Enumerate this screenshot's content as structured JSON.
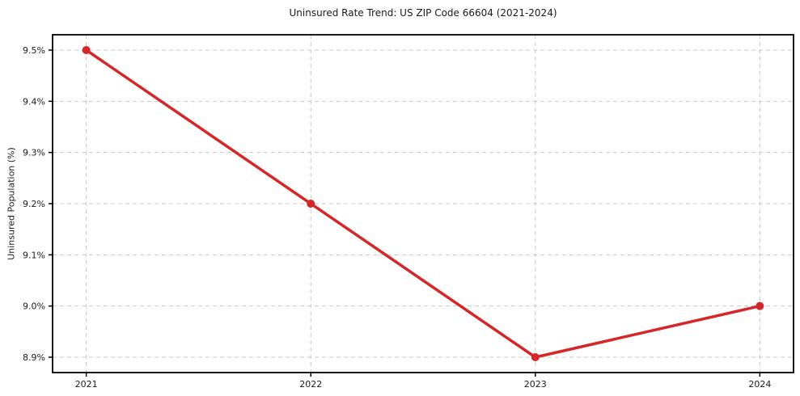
{
  "page": {
    "background": "#ffffff"
  },
  "chart_data": {
    "type": "line",
    "title": "Uninsured Rate Trend: US ZIP Code 66604 (2021-2024)",
    "xlabel": "",
    "ylabel": "Uninsured Population (%)",
    "x": [
      2021,
      2022,
      2023,
      2024
    ],
    "series": [
      {
        "values": [
          9.5,
          9.2,
          8.9,
          9.0
        ],
        "color": "#d62728",
        "marker": "circle",
        "line_width": 3.5,
        "marker_radius": 5
      }
    ],
    "xticks": {
      "values": [
        2021,
        2022,
        2023,
        2024
      ],
      "labels": [
        "2021",
        "2022",
        "2023",
        "2024"
      ]
    },
    "yticks": {
      "values": [
        8.9,
        9.0,
        9.1,
        9.2,
        9.3,
        9.4,
        9.5
      ],
      "labels": [
        "8.9%",
        "9.0%",
        "9.1%",
        "9.2%",
        "9.3%",
        "9.4%",
        "9.5%"
      ]
    },
    "xlim": [
      2020.85,
      2024.15
    ],
    "ylim": [
      8.87,
      9.53
    ],
    "grid": true,
    "grid_style": "dashed",
    "legend_position": "none",
    "colors": {
      "line": "#d62728",
      "grid": "#c8c8c8",
      "spine": "#000000",
      "text": "#1a1a1a"
    }
  }
}
